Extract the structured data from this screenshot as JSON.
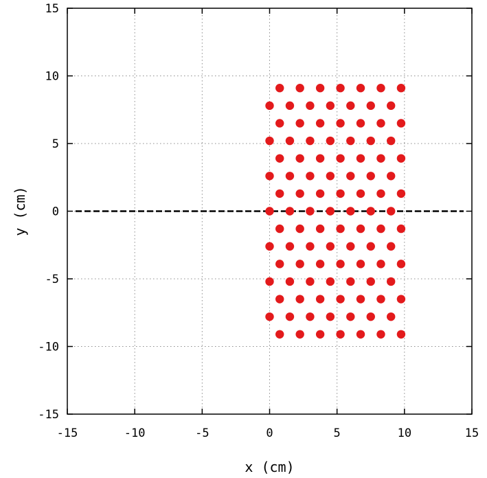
{
  "chart_data": {
    "type": "scatter",
    "xlabel": "x (cm)",
    "ylabel": "y (cm)",
    "xlim": [
      -15,
      15
    ],
    "ylim": [
      -15,
      15
    ],
    "xticks": [
      -15,
      -10,
      -5,
      0,
      5,
      10,
      15
    ],
    "yticks": [
      -15,
      -10,
      -5,
      0,
      5,
      10,
      15
    ],
    "x_tick_labels": [
      "-15",
      "-10",
      "-5",
      "0",
      "5",
      "10",
      "15"
    ],
    "y_tick_labels": [
      "-15",
      "-10",
      "-5",
      "0",
      "5",
      "10",
      "15"
    ],
    "grid": true,
    "legend": "none",
    "reference_line": {
      "y": 0,
      "style": "dashed",
      "color": "#000000"
    },
    "marker_color": "#e31a1c",
    "series": [
      {
        "marker": "filled-circle",
        "points": [
          [
            0.75,
            9.1
          ],
          [
            2.25,
            9.1
          ],
          [
            3.75,
            9.1
          ],
          [
            5.25,
            9.1
          ],
          [
            6.75,
            9.1
          ],
          [
            8.25,
            9.1
          ],
          [
            9.75,
            9.1
          ],
          [
            0.0,
            7.8
          ],
          [
            1.5,
            7.8
          ],
          [
            3.0,
            7.8
          ],
          [
            4.5,
            7.8
          ],
          [
            6.0,
            7.8
          ],
          [
            7.5,
            7.8
          ],
          [
            9.0,
            7.8
          ],
          [
            0.75,
            6.5
          ],
          [
            2.25,
            6.5
          ],
          [
            3.75,
            6.5
          ],
          [
            5.25,
            6.5
          ],
          [
            6.75,
            6.5
          ],
          [
            8.25,
            6.5
          ],
          [
            9.75,
            6.5
          ],
          [
            0.0,
            5.2
          ],
          [
            1.5,
            5.2
          ],
          [
            3.0,
            5.2
          ],
          [
            4.5,
            5.2
          ],
          [
            6.0,
            5.2
          ],
          [
            7.5,
            5.2
          ],
          [
            9.0,
            5.2
          ],
          [
            0.75,
            3.9
          ],
          [
            2.25,
            3.9
          ],
          [
            3.75,
            3.9
          ],
          [
            5.25,
            3.9
          ],
          [
            6.75,
            3.9
          ],
          [
            8.25,
            3.9
          ],
          [
            9.75,
            3.9
          ],
          [
            0.0,
            2.6
          ],
          [
            1.5,
            2.6
          ],
          [
            3.0,
            2.6
          ],
          [
            4.5,
            2.6
          ],
          [
            6.0,
            2.6
          ],
          [
            7.5,
            2.6
          ],
          [
            9.0,
            2.6
          ],
          [
            0.75,
            1.3
          ],
          [
            2.25,
            1.3
          ],
          [
            3.75,
            1.3
          ],
          [
            5.25,
            1.3
          ],
          [
            6.75,
            1.3
          ],
          [
            8.25,
            1.3
          ],
          [
            9.75,
            1.3
          ],
          [
            0.0,
            0.0
          ],
          [
            1.5,
            0.0
          ],
          [
            3.0,
            0.0
          ],
          [
            4.5,
            0.0
          ],
          [
            6.0,
            0.0
          ],
          [
            7.5,
            0.0
          ],
          [
            9.0,
            0.0
          ],
          [
            0.75,
            -1.3
          ],
          [
            2.25,
            -1.3
          ],
          [
            3.75,
            -1.3
          ],
          [
            5.25,
            -1.3
          ],
          [
            6.75,
            -1.3
          ],
          [
            8.25,
            -1.3
          ],
          [
            9.75,
            -1.3
          ],
          [
            0.0,
            -2.6
          ],
          [
            1.5,
            -2.6
          ],
          [
            3.0,
            -2.6
          ],
          [
            4.5,
            -2.6
          ],
          [
            6.0,
            -2.6
          ],
          [
            7.5,
            -2.6
          ],
          [
            9.0,
            -2.6
          ],
          [
            0.75,
            -3.9
          ],
          [
            2.25,
            -3.9
          ],
          [
            3.75,
            -3.9
          ],
          [
            5.25,
            -3.9
          ],
          [
            6.75,
            -3.9
          ],
          [
            8.25,
            -3.9
          ],
          [
            9.75,
            -3.9
          ],
          [
            0.0,
            -5.2
          ],
          [
            1.5,
            -5.2
          ],
          [
            3.0,
            -5.2
          ],
          [
            4.5,
            -5.2
          ],
          [
            6.0,
            -5.2
          ],
          [
            7.5,
            -5.2
          ],
          [
            9.0,
            -5.2
          ],
          [
            0.75,
            -6.5
          ],
          [
            2.25,
            -6.5
          ],
          [
            3.75,
            -6.5
          ],
          [
            5.25,
            -6.5
          ],
          [
            6.75,
            -6.5
          ],
          [
            8.25,
            -6.5
          ],
          [
            9.75,
            -6.5
          ],
          [
            0.0,
            -7.8
          ],
          [
            1.5,
            -7.8
          ],
          [
            3.0,
            -7.8
          ],
          [
            4.5,
            -7.8
          ],
          [
            6.0,
            -7.8
          ],
          [
            7.5,
            -7.8
          ],
          [
            9.0,
            -7.8
          ],
          [
            0.75,
            -9.1
          ],
          [
            2.25,
            -9.1
          ],
          [
            3.75,
            -9.1
          ],
          [
            5.25,
            -9.1
          ],
          [
            6.75,
            -9.1
          ],
          [
            8.25,
            -9.1
          ],
          [
            9.75,
            -9.1
          ]
        ]
      }
    ]
  }
}
